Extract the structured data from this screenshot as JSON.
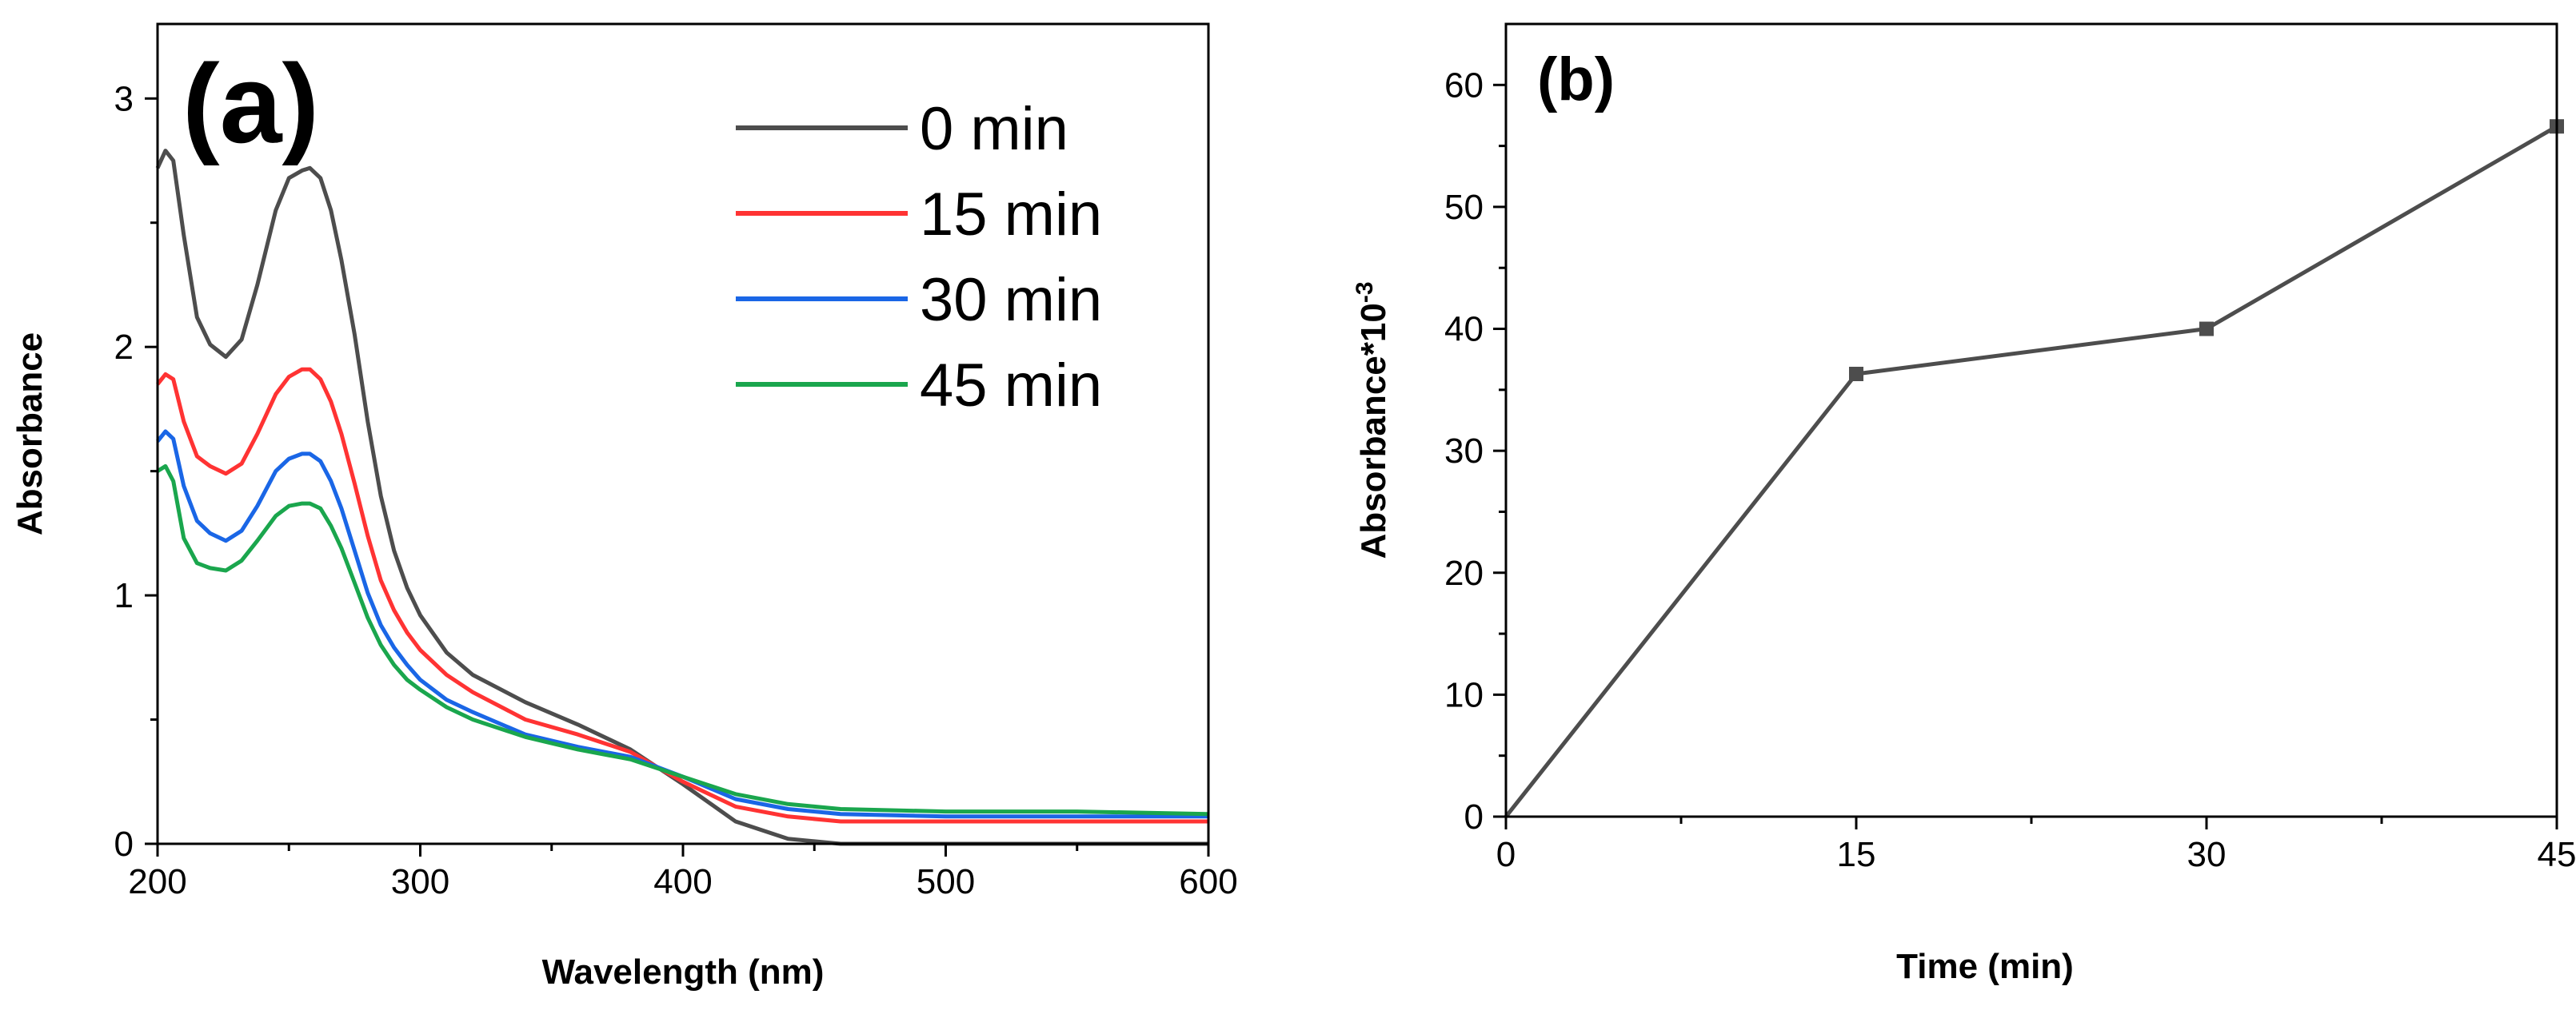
{
  "figure": {
    "panels": [
      "(a)",
      "(b)"
    ]
  },
  "chart_data": [
    {
      "panel": "(a)",
      "type": "line",
      "title": "",
      "xlabel": "Wavelength (nm)",
      "ylabel": "Absorbance",
      "xlim": [
        200,
        600
      ],
      "ylim": [
        0,
        3.3
      ],
      "xticks": [
        200,
        300,
        400,
        500,
        600
      ],
      "yticks": [
        0,
        1,
        2,
        3
      ],
      "grid": false,
      "legend_position": "top-right",
      "x": [
        200,
        203,
        206,
        210,
        215,
        220,
        226,
        232,
        238,
        245,
        250,
        255,
        258,
        262,
        266,
        270,
        275,
        280,
        285,
        290,
        295,
        300,
        310,
        320,
        340,
        360,
        380,
        400,
        420,
        440,
        460,
        500,
        550,
        600
      ],
      "series": [
        {
          "name": "0 min",
          "color": "#4d4d4d",
          "values": [
            2.72,
            2.79,
            2.75,
            2.45,
            2.12,
            2.01,
            1.96,
            2.03,
            2.25,
            2.55,
            2.68,
            2.71,
            2.72,
            2.68,
            2.55,
            2.35,
            2.05,
            1.7,
            1.4,
            1.18,
            1.03,
            0.92,
            0.77,
            0.68,
            0.57,
            0.48,
            0.38,
            0.24,
            0.09,
            0.02,
            0.0,
            0.0,
            0.0,
            0.0
          ]
        },
        {
          "name": "15 min",
          "color": "#ff3333",
          "values": [
            1.85,
            1.89,
            1.87,
            1.7,
            1.56,
            1.52,
            1.49,
            1.53,
            1.65,
            1.81,
            1.88,
            1.91,
            1.91,
            1.87,
            1.78,
            1.65,
            1.45,
            1.24,
            1.06,
            0.94,
            0.85,
            0.78,
            0.68,
            0.61,
            0.5,
            0.44,
            0.37,
            0.25,
            0.15,
            0.11,
            0.09,
            0.09,
            0.09,
            0.09
          ]
        },
        {
          "name": "30 min",
          "color": "#1a66e6",
          "values": [
            1.62,
            1.66,
            1.63,
            1.44,
            1.3,
            1.25,
            1.22,
            1.26,
            1.36,
            1.5,
            1.55,
            1.57,
            1.57,
            1.54,
            1.46,
            1.35,
            1.18,
            1.01,
            0.88,
            0.79,
            0.72,
            0.66,
            0.58,
            0.53,
            0.44,
            0.39,
            0.35,
            0.27,
            0.18,
            0.14,
            0.12,
            0.11,
            0.11,
            0.11
          ]
        },
        {
          "name": "45 min",
          "color": "#1aa64d",
          "values": [
            1.5,
            1.52,
            1.46,
            1.23,
            1.13,
            1.11,
            1.1,
            1.14,
            1.22,
            1.32,
            1.36,
            1.37,
            1.37,
            1.35,
            1.28,
            1.19,
            1.05,
            0.91,
            0.8,
            0.72,
            0.66,
            0.62,
            0.55,
            0.5,
            0.43,
            0.38,
            0.34,
            0.27,
            0.2,
            0.16,
            0.14,
            0.13,
            0.13,
            0.12
          ]
        }
      ]
    },
    {
      "panel": "(b)",
      "type": "line",
      "title": "",
      "xlabel": "Time (min)",
      "ylabel_main": "Absorbance*10",
      "ylabel_exponent": "-3",
      "xlim": [
        0,
        45
      ],
      "ylim": [
        0,
        65
      ],
      "xticks": [
        0,
        15,
        30,
        45
      ],
      "yticks": [
        0,
        10,
        20,
        30,
        40,
        50,
        60
      ],
      "grid": false,
      "x": [
        0,
        15,
        30,
        45
      ],
      "series": [
        {
          "name": "Absorbance",
          "color": "#4d4d4d",
          "values": [
            0,
            36.3,
            40.0,
            56.6
          ],
          "markers": [
            false,
            true,
            true,
            true
          ]
        }
      ]
    }
  ]
}
